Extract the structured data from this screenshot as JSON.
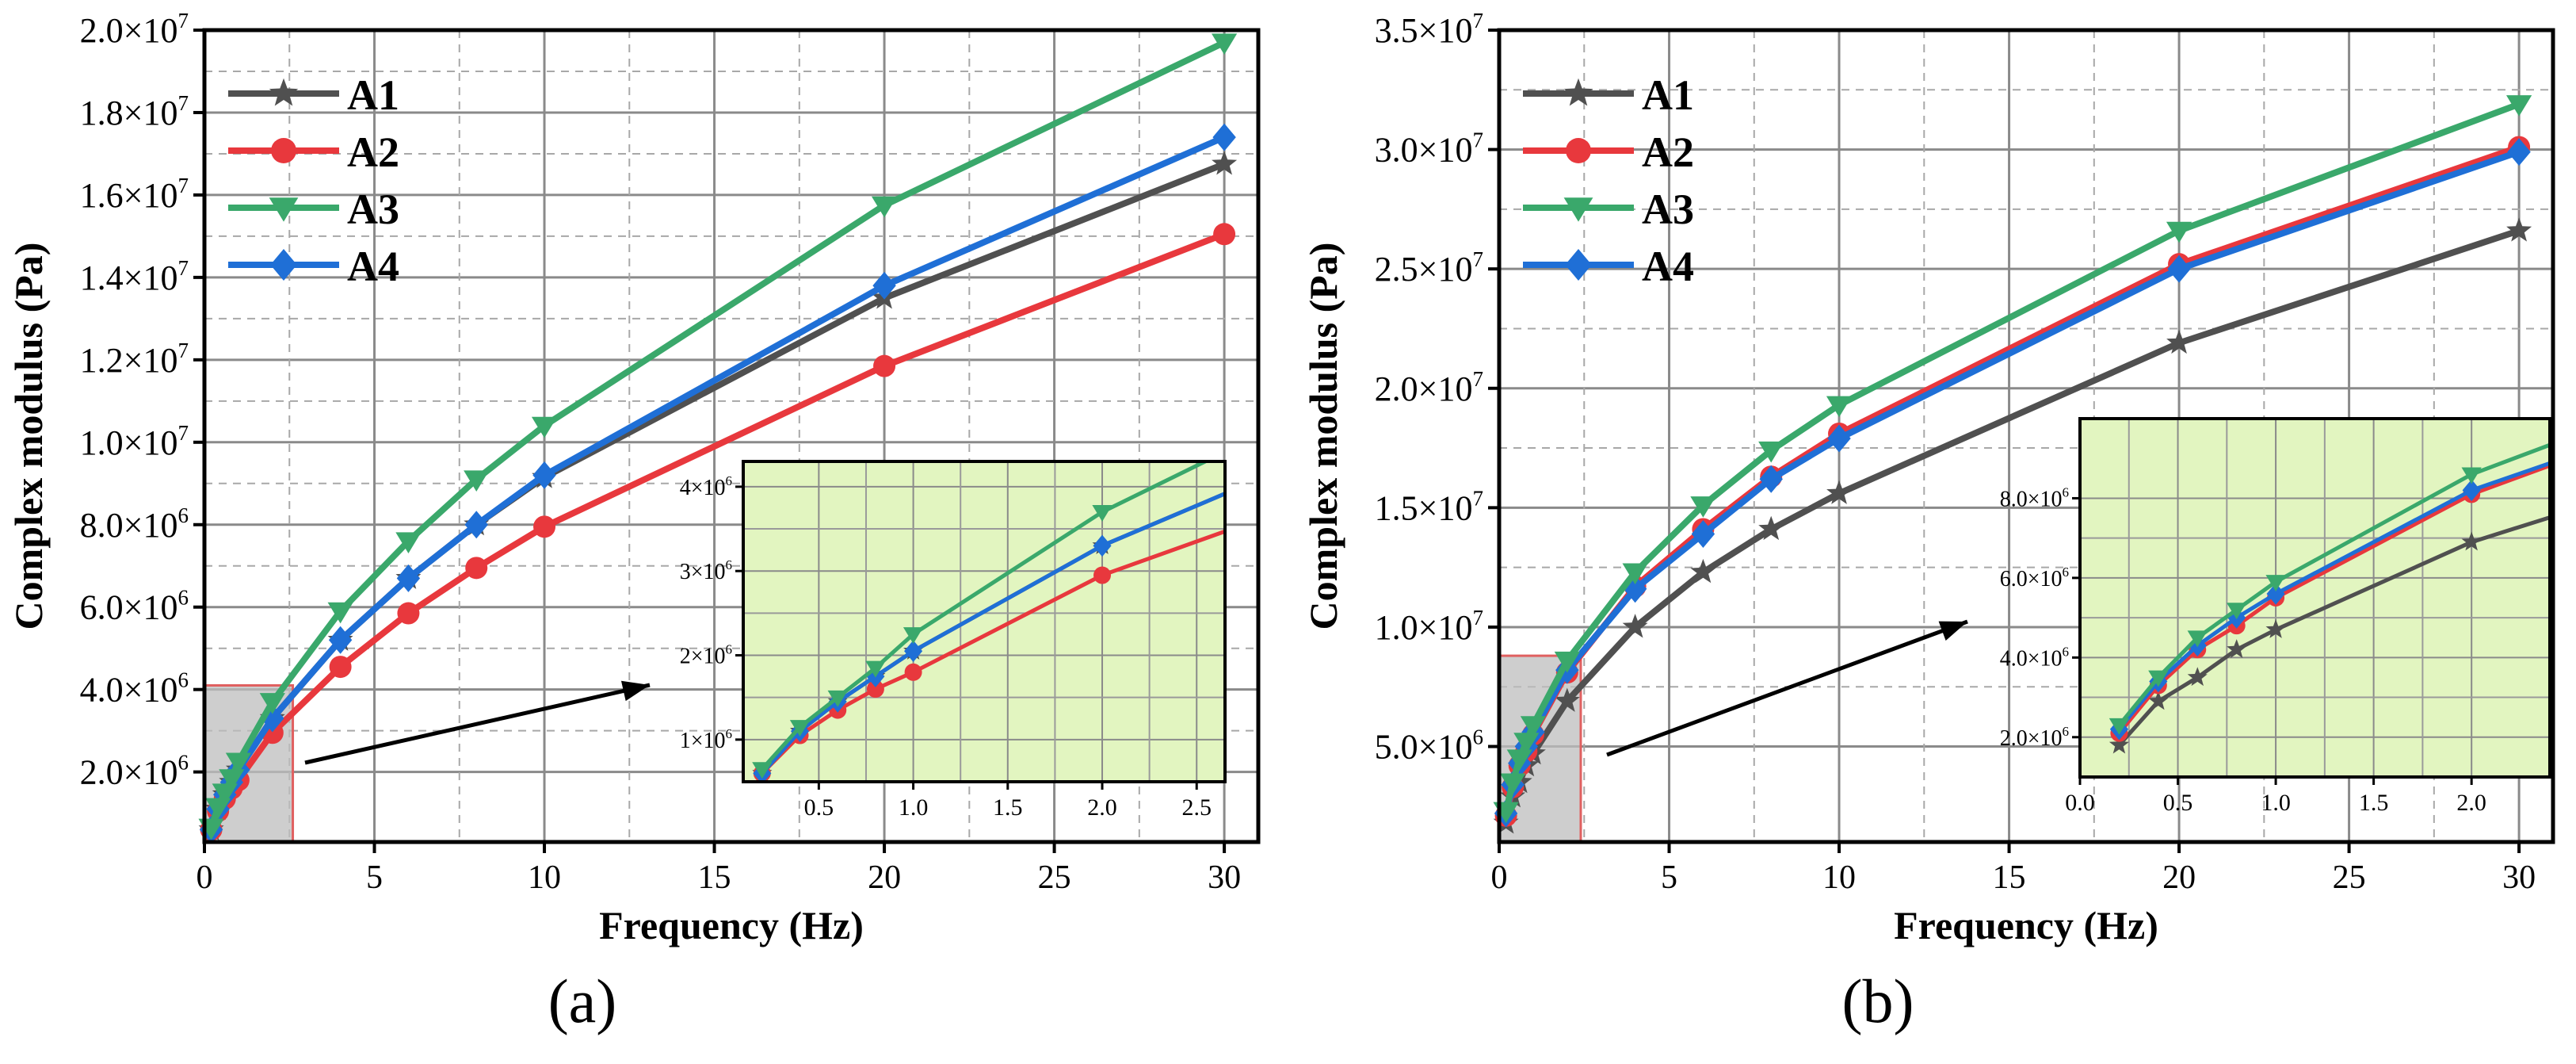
{
  "chart_data": [
    {
      "type": "line",
      "panel_label": "(a)",
      "xlabel": "Frequency (Hz)",
      "ylabel": "Complex modulus (Pa)",
      "xlim": [
        0,
        31
      ],
      "ylim": [
        300000,
        20000000
      ],
      "xticks": [
        0,
        5,
        10,
        15,
        20,
        25,
        30
      ],
      "x_tick_labels": [
        "0",
        "5",
        "10",
        "15",
        "20",
        "25",
        "30"
      ],
      "yticks": [
        2000000,
        4000000,
        6000000,
        8000000,
        10000000,
        12000000,
        14000000,
        16000000,
        18000000,
        20000000
      ],
      "y_tick_labels": [
        {
          "mant": "2.0",
          "exp": "6"
        },
        {
          "mant": "4.0",
          "exp": "6"
        },
        {
          "mant": "6.0",
          "exp": "6"
        },
        {
          "mant": "8.0",
          "exp": "6"
        },
        {
          "mant": "1.0",
          "exp": "7"
        },
        {
          "mant": "1.2",
          "exp": "7"
        },
        {
          "mant": "1.4",
          "exp": "7"
        },
        {
          "mant": "1.6",
          "exp": "7"
        },
        {
          "mant": "1.8",
          "exp": "7"
        },
        {
          "mant": "2.0",
          "exp": "7"
        }
      ],
      "grid": true,
      "legend_position": "top-left",
      "x": [
        0.2,
        0.4,
        0.6,
        0.8,
        1,
        2,
        4,
        6,
        8,
        10,
        20,
        30
      ],
      "series": [
        {
          "name": "A1",
          "color": "#505050",
          "marker": "star",
          "values": [
            600000,
            1100000,
            1450000,
            1750000,
            2050000,
            3300000,
            5200000,
            6700000,
            8000000,
            9150000,
            13500000,
            16750000
          ]
        },
        {
          "name": "A2",
          "color": "#e8383d",
          "marker": "circle",
          "values": [
            600000,
            1050000,
            1350000,
            1600000,
            1800000,
            2950000,
            4550000,
            5850000,
            6950000,
            7950000,
            11850000,
            15050000
          ]
        },
        {
          "name": "A3",
          "color": "#3aa86b",
          "marker": "triangle-down",
          "values": [
            650000,
            1150000,
            1500000,
            1850000,
            2250000,
            3700000,
            5900000,
            7600000,
            9100000,
            10400000,
            15750000,
            19700000
          ]
        },
        {
          "name": "A4",
          "color": "#1f6fd6",
          "marker": "diamond",
          "values": [
            600000,
            1100000,
            1450000,
            1750000,
            2050000,
            3300000,
            5200000,
            6700000,
            8000000,
            9200000,
            13800000,
            17400000
          ]
        }
      ],
      "highlight_region": {
        "x": [
          0,
          2.6
        ],
        "y": [
          300000,
          4100000
        ]
      },
      "inset": {
        "xlim": [
          0.1,
          2.65
        ],
        "ylim": [
          500000,
          4300000
        ],
        "xticks": [
          0.5,
          1.0,
          1.5,
          2.0,
          2.5
        ],
        "x_tick_labels": [
          "0.5",
          "1.0",
          "1.5",
          "2.0",
          "2.5"
        ],
        "yticks": [
          1000000,
          2000000,
          3000000,
          4000000
        ],
        "y_tick_labels": [
          {
            "mant": "1",
            "exp": "6"
          },
          {
            "mant": "2",
            "exp": "6"
          },
          {
            "mant": "3",
            "exp": "6"
          },
          {
            "mant": "4",
            "exp": "6"
          }
        ],
        "background": "#e2f5c0"
      }
    },
    {
      "type": "line",
      "panel_label": "(b)",
      "xlabel": "Frequency (Hz)",
      "ylabel": "Complex modulus (Pa)",
      "xlim": [
        0,
        31
      ],
      "ylim": [
        1000000,
        35000000
      ],
      "xticks": [
        0,
        5,
        10,
        15,
        20,
        25,
        30
      ],
      "x_tick_labels": [
        "0",
        "5",
        "10",
        "15",
        "20",
        "25",
        "30"
      ],
      "yticks": [
        5000000,
        10000000,
        15000000,
        20000000,
        25000000,
        30000000,
        35000000
      ],
      "y_tick_labels": [
        {
          "mant": "5.0",
          "exp": "6"
        },
        {
          "mant": "1.0",
          "exp": "7"
        },
        {
          "mant": "1.5",
          "exp": "7"
        },
        {
          "mant": "2.0",
          "exp": "7"
        },
        {
          "mant": "2.5",
          "exp": "7"
        },
        {
          "mant": "3.0",
          "exp": "7"
        },
        {
          "mant": "3.5",
          "exp": "7"
        }
      ],
      "grid": true,
      "legend_position": "top-left",
      "x": [
        0.2,
        0.4,
        0.6,
        0.8,
        1,
        2,
        4,
        6,
        8,
        10,
        20,
        30
      ],
      "series": [
        {
          "name": "A1",
          "color": "#505050",
          "marker": "star",
          "values": [
            1800000,
            2900000,
            3500000,
            4200000,
            4700000,
            6900000,
            10000000,
            12300000,
            14100000,
            15600000,
            21900000,
            26600000
          ]
        },
        {
          "name": "A2",
          "color": "#e8383d",
          "marker": "circle",
          "values": [
            2100000,
            3300000,
            4200000,
            4800000,
            5500000,
            8100000,
            11700000,
            14100000,
            16300000,
            18100000,
            25200000,
            30100000
          ]
        },
        {
          "name": "A3",
          "color": "#3aa86b",
          "marker": "triangle-down",
          "values": [
            2300000,
            3500000,
            4500000,
            5200000,
            5900000,
            8600000,
            12300000,
            15100000,
            17400000,
            19300000,
            26600000,
            31900000
          ]
        },
        {
          "name": "A4",
          "color": "#1f6fd6",
          "marker": "diamond",
          "values": [
            2200000,
            3400000,
            4300000,
            5000000,
            5600000,
            8200000,
            11600000,
            13900000,
            16200000,
            17900000,
            25000000,
            29900000
          ]
        }
      ],
      "highlight_region": {
        "x": [
          0,
          2.4
        ],
        "y": [
          1000000,
          8800000
        ]
      },
      "inset": {
        "xlim": [
          0.0,
          2.4
        ],
        "ylim": [
          1000000,
          10000000
        ],
        "xticks": [
          0.0,
          0.5,
          1.0,
          1.5,
          2.0
        ],
        "x_tick_labels": [
          "0.0",
          "0.5",
          "1.0",
          "1.5",
          "2.0"
        ],
        "yticks": [
          2000000,
          4000000,
          6000000,
          8000000
        ],
        "y_tick_labels": [
          {
            "mant": "2.0",
            "exp": "6"
          },
          {
            "mant": "4.0",
            "exp": "6"
          },
          {
            "mant": "6.0",
            "exp": "6"
          },
          {
            "mant": "8.0",
            "exp": "6"
          }
        ],
        "background": "#e2f5c0"
      }
    }
  ]
}
